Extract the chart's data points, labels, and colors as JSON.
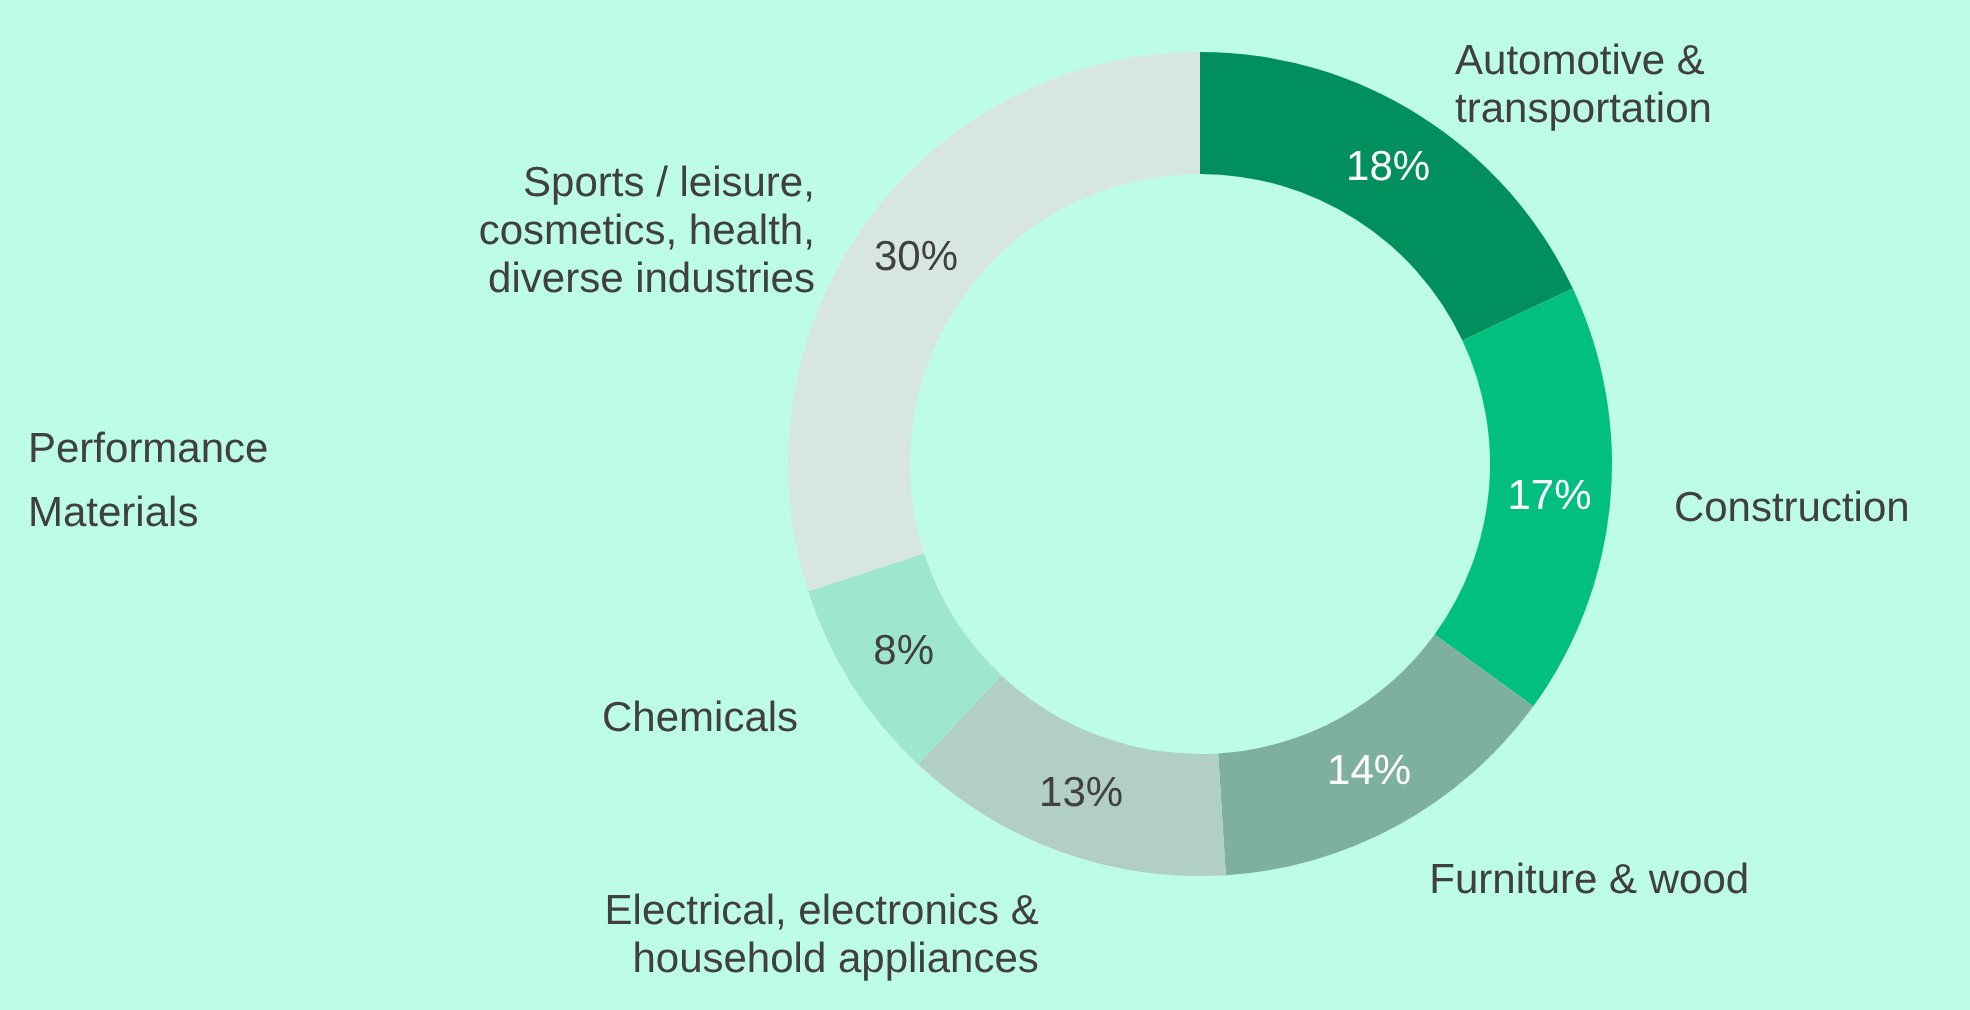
{
  "chart_data": {
    "type": "donut",
    "title": "Performance Materials",
    "categories": [
      "Automotive & transportation",
      "Construction",
      "Furniture & wood",
      "Electrical, electronics & household appliances",
      "Chemicals",
      "Sports / leisure, cosmetics, health, diverse industries"
    ],
    "values": [
      18,
      17,
      14,
      13,
      8,
      30
    ],
    "colors": [
      "#008f5d",
      "#00bf7f",
      "#7fb09f",
      "#b2cfc5",
      "#9ee6cc",
      "#d8e6e1"
    ],
    "value_labels": [
      "18%",
      "17%",
      "14%",
      "13%",
      "8%",
      "30%"
    ]
  }
}
